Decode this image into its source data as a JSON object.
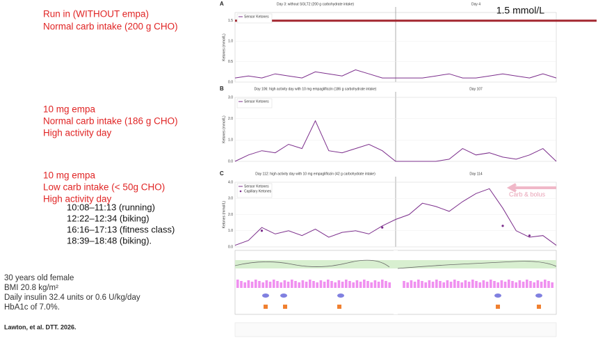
{
  "slide": {
    "run_in": [
      "Run in (WITHOUT empa)",
      "Normal carb intake (200 g CHO)"
    ],
    "empa_normal": [
      "10 mg empa",
      "Normal carb intake (186 g CHO)",
      "High activity day"
    ],
    "empa_low": [
      "10 mg empa",
      "Low carb intake (< 50g CHO)",
      "High activity day"
    ],
    "activities": [
      "10:08–11:13 (running)",
      "12:22–12:34 (biking)",
      "16:16–17:13 (fitness class)",
      "18:39–18:48 (biking)."
    ],
    "patient": [
      "30 years old female",
      "BMI 20.8 kg/m²",
      "Daily insulin 32.4 units or 0.6 U/kg/day",
      "HbA1c of 7.0%."
    ],
    "citation": "Lawton, et al. DTT. 2026."
  },
  "chart_data": [
    {
      "type": "line",
      "panel": "A",
      "title": "Day 3: without SGLT2 (200 g carbohydrate intake)",
      "title2": "Day 4",
      "ylabel": "Ketones (mmol/L)",
      "threshold": {
        "value": 1.5,
        "label": "1.5 mmol/L",
        "color": "#a3262f"
      },
      "x": [
        0,
        2,
        4,
        6,
        8,
        10,
        12,
        14,
        16,
        18,
        20,
        22,
        24,
        26,
        28,
        30,
        32,
        34,
        36,
        38,
        40,
        42,
        44,
        46,
        48
      ],
      "series": [
        {
          "name": "Sensor Ketones",
          "color": "#7b2d8b",
          "values": [
            0.1,
            0.15,
            0.1,
            0.2,
            0.15,
            0.1,
            0.25,
            0.2,
            0.15,
            0.3,
            0.2,
            0.1,
            0.1,
            0.1,
            0.1,
            0.15,
            0.2,
            0.1,
            0.1,
            0.15,
            0.2,
            0.15,
            0.1,
            0.2,
            0.1
          ]
        }
      ],
      "xlim": [
        0,
        48
      ],
      "ylim": [
        0,
        1.7
      ],
      "yticks": [
        {
          "value": 0,
          "label": "0.0"
        },
        {
          "value": 0.5,
          "label": "0.5"
        },
        {
          "value": 1,
          "label": "1.0"
        },
        {
          "value": 1.5,
          "label": "1.5"
        }
      ]
    },
    {
      "type": "line",
      "panel": "B",
      "title": "Day 106: high activity day with 10 mg empagliflozin (186 g carbohydrate intake)",
      "title2": "Day 107",
      "ylabel": "Ketones (mmol/L)",
      "x": [
        0,
        2,
        4,
        6,
        8,
        10,
        12,
        14,
        16,
        18,
        20,
        22,
        24,
        26,
        28,
        30,
        32,
        34,
        36,
        38,
        40,
        42,
        44,
        46,
        48
      ],
      "series": [
        {
          "name": "Sensor Ketones",
          "color": "#7b2d8b",
          "values": [
            0,
            0.3,
            0.5,
            0.4,
            0.8,
            0.6,
            1.9,
            0.5,
            0.4,
            0.6,
            0.8,
            0.5,
            0,
            0,
            0,
            0,
            0.1,
            0.6,
            0.3,
            0.4,
            0.2,
            0.1,
            0.3,
            0.6,
            0
          ]
        }
      ],
      "xlim": [
        0,
        48
      ],
      "ylim": [
        0,
        3
      ],
      "yticks": [
        {
          "value": 0,
          "label": "0.0"
        },
        {
          "value": 1,
          "label": "1.0"
        },
        {
          "value": 2,
          "label": "2.0"
        },
        {
          "value": 3,
          "label": "3.0"
        }
      ]
    },
    {
      "type": "line",
      "panel": "C",
      "title": "Day 112: high activity day with 10 mg empagliflozin (42 g carbohydrate intake)",
      "title2": "Day 114",
      "ylabel": "Ketones (mmol/L)",
      "annotation": "Carb & bolus",
      "x": [
        0,
        2,
        4,
        6,
        8,
        10,
        12,
        14,
        16,
        18,
        20,
        22,
        24,
        26,
        28,
        30,
        32,
        34,
        36,
        38,
        40,
        42,
        44,
        46,
        48
      ],
      "series": [
        {
          "name": "Sensor Ketones",
          "color": "#7b2d8b",
          "values": [
            0.1,
            0.4,
            1.2,
            0.8,
            1.0,
            0.7,
            1.1,
            0.6,
            0.9,
            1.0,
            0.8,
            1.3,
            1.7,
            2.0,
            2.7,
            2.5,
            2.2,
            2.8,
            3.3,
            3.6,
            2.4,
            1.0,
            0.6,
            0.7,
            0.1
          ]
        },
        {
          "name": "Capillary Ketones",
          "color": "#7b2d8b",
          "values": [
            null,
            null,
            1.0,
            null,
            null,
            null,
            null,
            null,
            null,
            null,
            null,
            1.2,
            null,
            null,
            null,
            null,
            null,
            null,
            null,
            null,
            1.3,
            null,
            0.7,
            null,
            null
          ]
        }
      ],
      "xlim": [
        0,
        48
      ],
      "ylim": [
        0,
        4
      ],
      "yticks": [
        {
          "value": 0,
          "label": "0.0"
        },
        {
          "value": 1,
          "label": "1.0"
        },
        {
          "value": 2,
          "label": "2.0"
        },
        {
          "value": 3,
          "label": "3.0"
        },
        {
          "value": 4,
          "label": "4.0"
        }
      ]
    }
  ]
}
